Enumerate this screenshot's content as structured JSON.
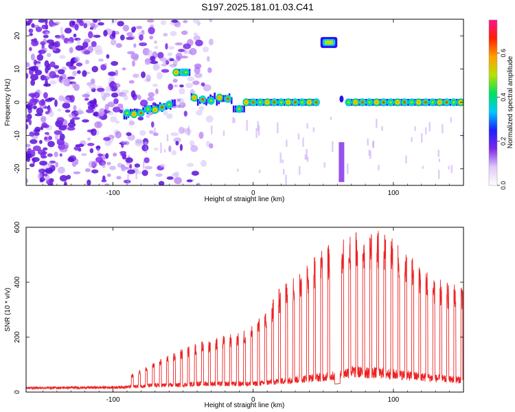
{
  "title": "S197.2025.181.01.03.C41",
  "chart_data": [
    {
      "type": "heatmap",
      "xlabel": "Height of straight line (km)",
      "ylabel": "Frequency (Hz)",
      "xlim": [
        -162,
        150
      ],
      "ylim": [
        -25,
        25
      ],
      "xticks": [
        -100,
        0,
        100
      ],
      "yticks": [
        -20,
        -10,
        0,
        10,
        20
      ],
      "colorbar": {
        "label": "Normalized spectral amplitude",
        "range": [
          0.0,
          0.75
        ],
        "ticks": [
          "0.0",
          "0.2",
          "0.4",
          "0.6"
        ],
        "colormap": [
          "#ffffff",
          "#e0c8f8",
          "#7a28e8",
          "#1e1eff",
          "#00c8ff",
          "#00e060",
          "#b8e000",
          "#ffa000",
          "#ff2000",
          "#ff1493"
        ]
      },
      "features": [
        {
          "label": "dominant frequency track",
          "x_range": [
            -92,
            150
          ],
          "frequency_hz": [
            -4,
            0.5
          ],
          "notes": "stepped line near 0 Hz with periodic high-amplitude blobs"
        },
        {
          "label": "high frequency feature",
          "x_range": [
            48,
            60
          ],
          "frequency_hz": 18
        },
        {
          "label": "noise region",
          "x_range": [
            -162,
            -50
          ],
          "frequency_hz": [
            -25,
            25
          ]
        }
      ]
    },
    {
      "type": "line",
      "xlabel": "Height of straight line (km)",
      "ylabel": "SNR (10 * v/v)",
      "xlim": [
        -162,
        150
      ],
      "ylim": [
        0,
        600
      ],
      "xticks": [
        -100,
        0,
        100
      ],
      "yticks": [
        0,
        200,
        400,
        600
      ],
      "series": [
        {
          "color": "#ee2222"
        }
      ],
      "envelope": {
        "x": [
          -162,
          -100,
          -85,
          -70,
          -55,
          -40,
          -25,
          -10,
          0,
          10,
          20,
          30,
          40,
          50,
          60,
          70,
          80,
          90,
          100,
          110,
          120,
          130,
          140,
          150
        ],
        "baseline": [
          15,
          17,
          20,
          25,
          25,
          30,
          30,
          30,
          30,
          35,
          40,
          45,
          50,
          55,
          60,
          75,
          70,
          70,
          65,
          60,
          55,
          50,
          45,
          45
        ],
        "peaks": [
          25,
          30,
          70,
          110,
          150,
          180,
          200,
          220,
          250,
          300,
          390,
          430,
          480,
          520,
          570,
          580,
          590,
          590,
          560,
          520,
          470,
          420,
          400,
          400
        ]
      }
    }
  ]
}
